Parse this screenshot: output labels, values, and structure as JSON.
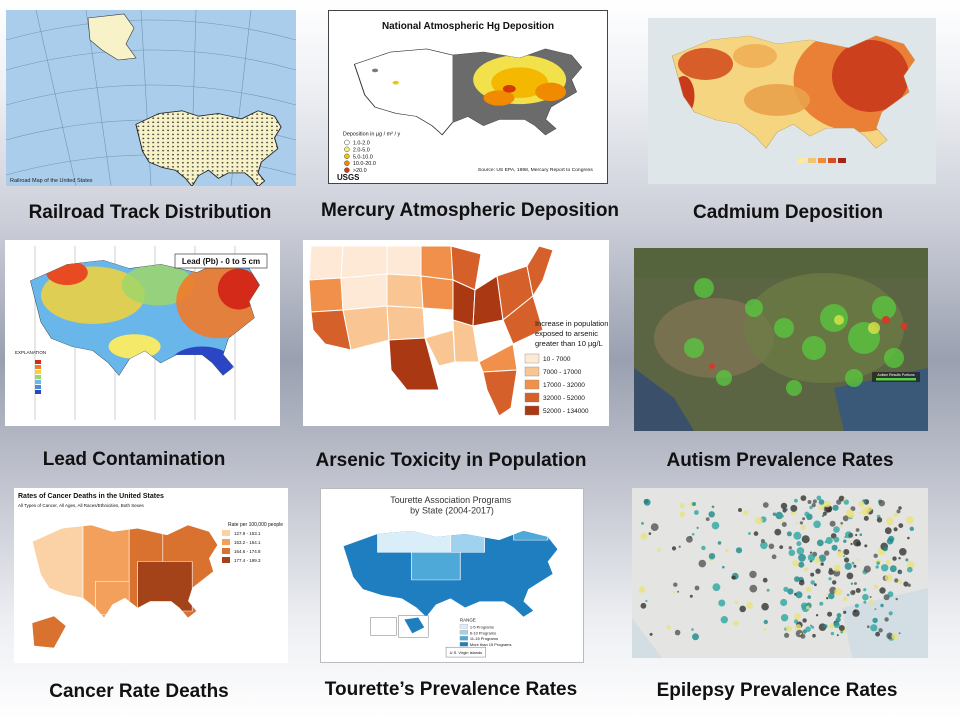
{
  "captions": {
    "railroad": "Railroad Track Distribution",
    "mercury": "Mercury Atmospheric Deposition",
    "cadmium": "Cadmium Deposition",
    "lead": "Lead Contamination",
    "arsenic": "Arsenic Toxicity in Population",
    "autism": "Autism Prevalence Rates",
    "cancer": "Cancer Rate Deaths",
    "tourette": "Tourette’s Prevalence Rates",
    "epilepsy": "Epilepsy Prevalence Rates"
  },
  "maps": {
    "railroad": {
      "subtitle": "Railroad Map of the United States"
    },
    "mercury": {
      "title": "National Atmospheric Hg Deposition",
      "legend_title": "Deposition in µg / m² / y",
      "legend_items": [
        "1.0-2.0",
        "2.0-5.0",
        "5.0-10.0",
        "10.0-20.0",
        ">20.0"
      ],
      "logo": "USGS",
      "source": "Source: US EPA, 1998, Mercury Report to Congress"
    },
    "lead": {
      "title": "Lead (Pb) - 0 to 5 cm",
      "legend_title": "EXPLANATION"
    },
    "arsenic": {
      "legend_title": "Increase in population exposed to arsenic greater than 10 µg/L",
      "legend_items": [
        "10 - 7000",
        "7000 - 17000",
        "17000 - 32000",
        "32000 - 52000",
        "52000 - 134000"
      ]
    },
    "autism": {
      "legend_title": "Autism Results Portions"
    },
    "cancer": {
      "title": "Rates of Cancer Deaths in the United States",
      "subtitle": "All Types of Cancer, All Ages, All Races/Ethnicities, Both Sexes",
      "legend_title": "Rate per 100,000 people",
      "legend_items": [
        "127.9 - 153.1",
        "153.2 - 164.1",
        "164.6 - 174.8",
        "177.4 - 199.3"
      ]
    },
    "tourette": {
      "title": "Tourette Association Programs by State (2004-2017)",
      "legend_title": "RANGE",
      "legend_items": [
        "1-5 Programs",
        "6-10 Programs",
        "11-15 Programs",
        "More than 15 Programs"
      ],
      "footnote": "U.S. Virgin Islands"
    }
  },
  "colors": {
    "mercury_scale": [
      "#ffffff",
      "#f2f27a",
      "#f5c400",
      "#f08a00",
      "#d4380c"
    ],
    "arsenic_scale": [
      "#fde9d6",
      "#f9c592",
      "#f0904a",
      "#d6602a",
      "#a93813"
    ],
    "cancer_scale": [
      "#fbd2a6",
      "#f2a05c",
      "#d9722f",
      "#a4421a"
    ],
    "tourette_scale": [
      "#d9eef9",
      "#9fd2ee",
      "#4ea9d9",
      "#1f7ec0"
    ]
  }
}
